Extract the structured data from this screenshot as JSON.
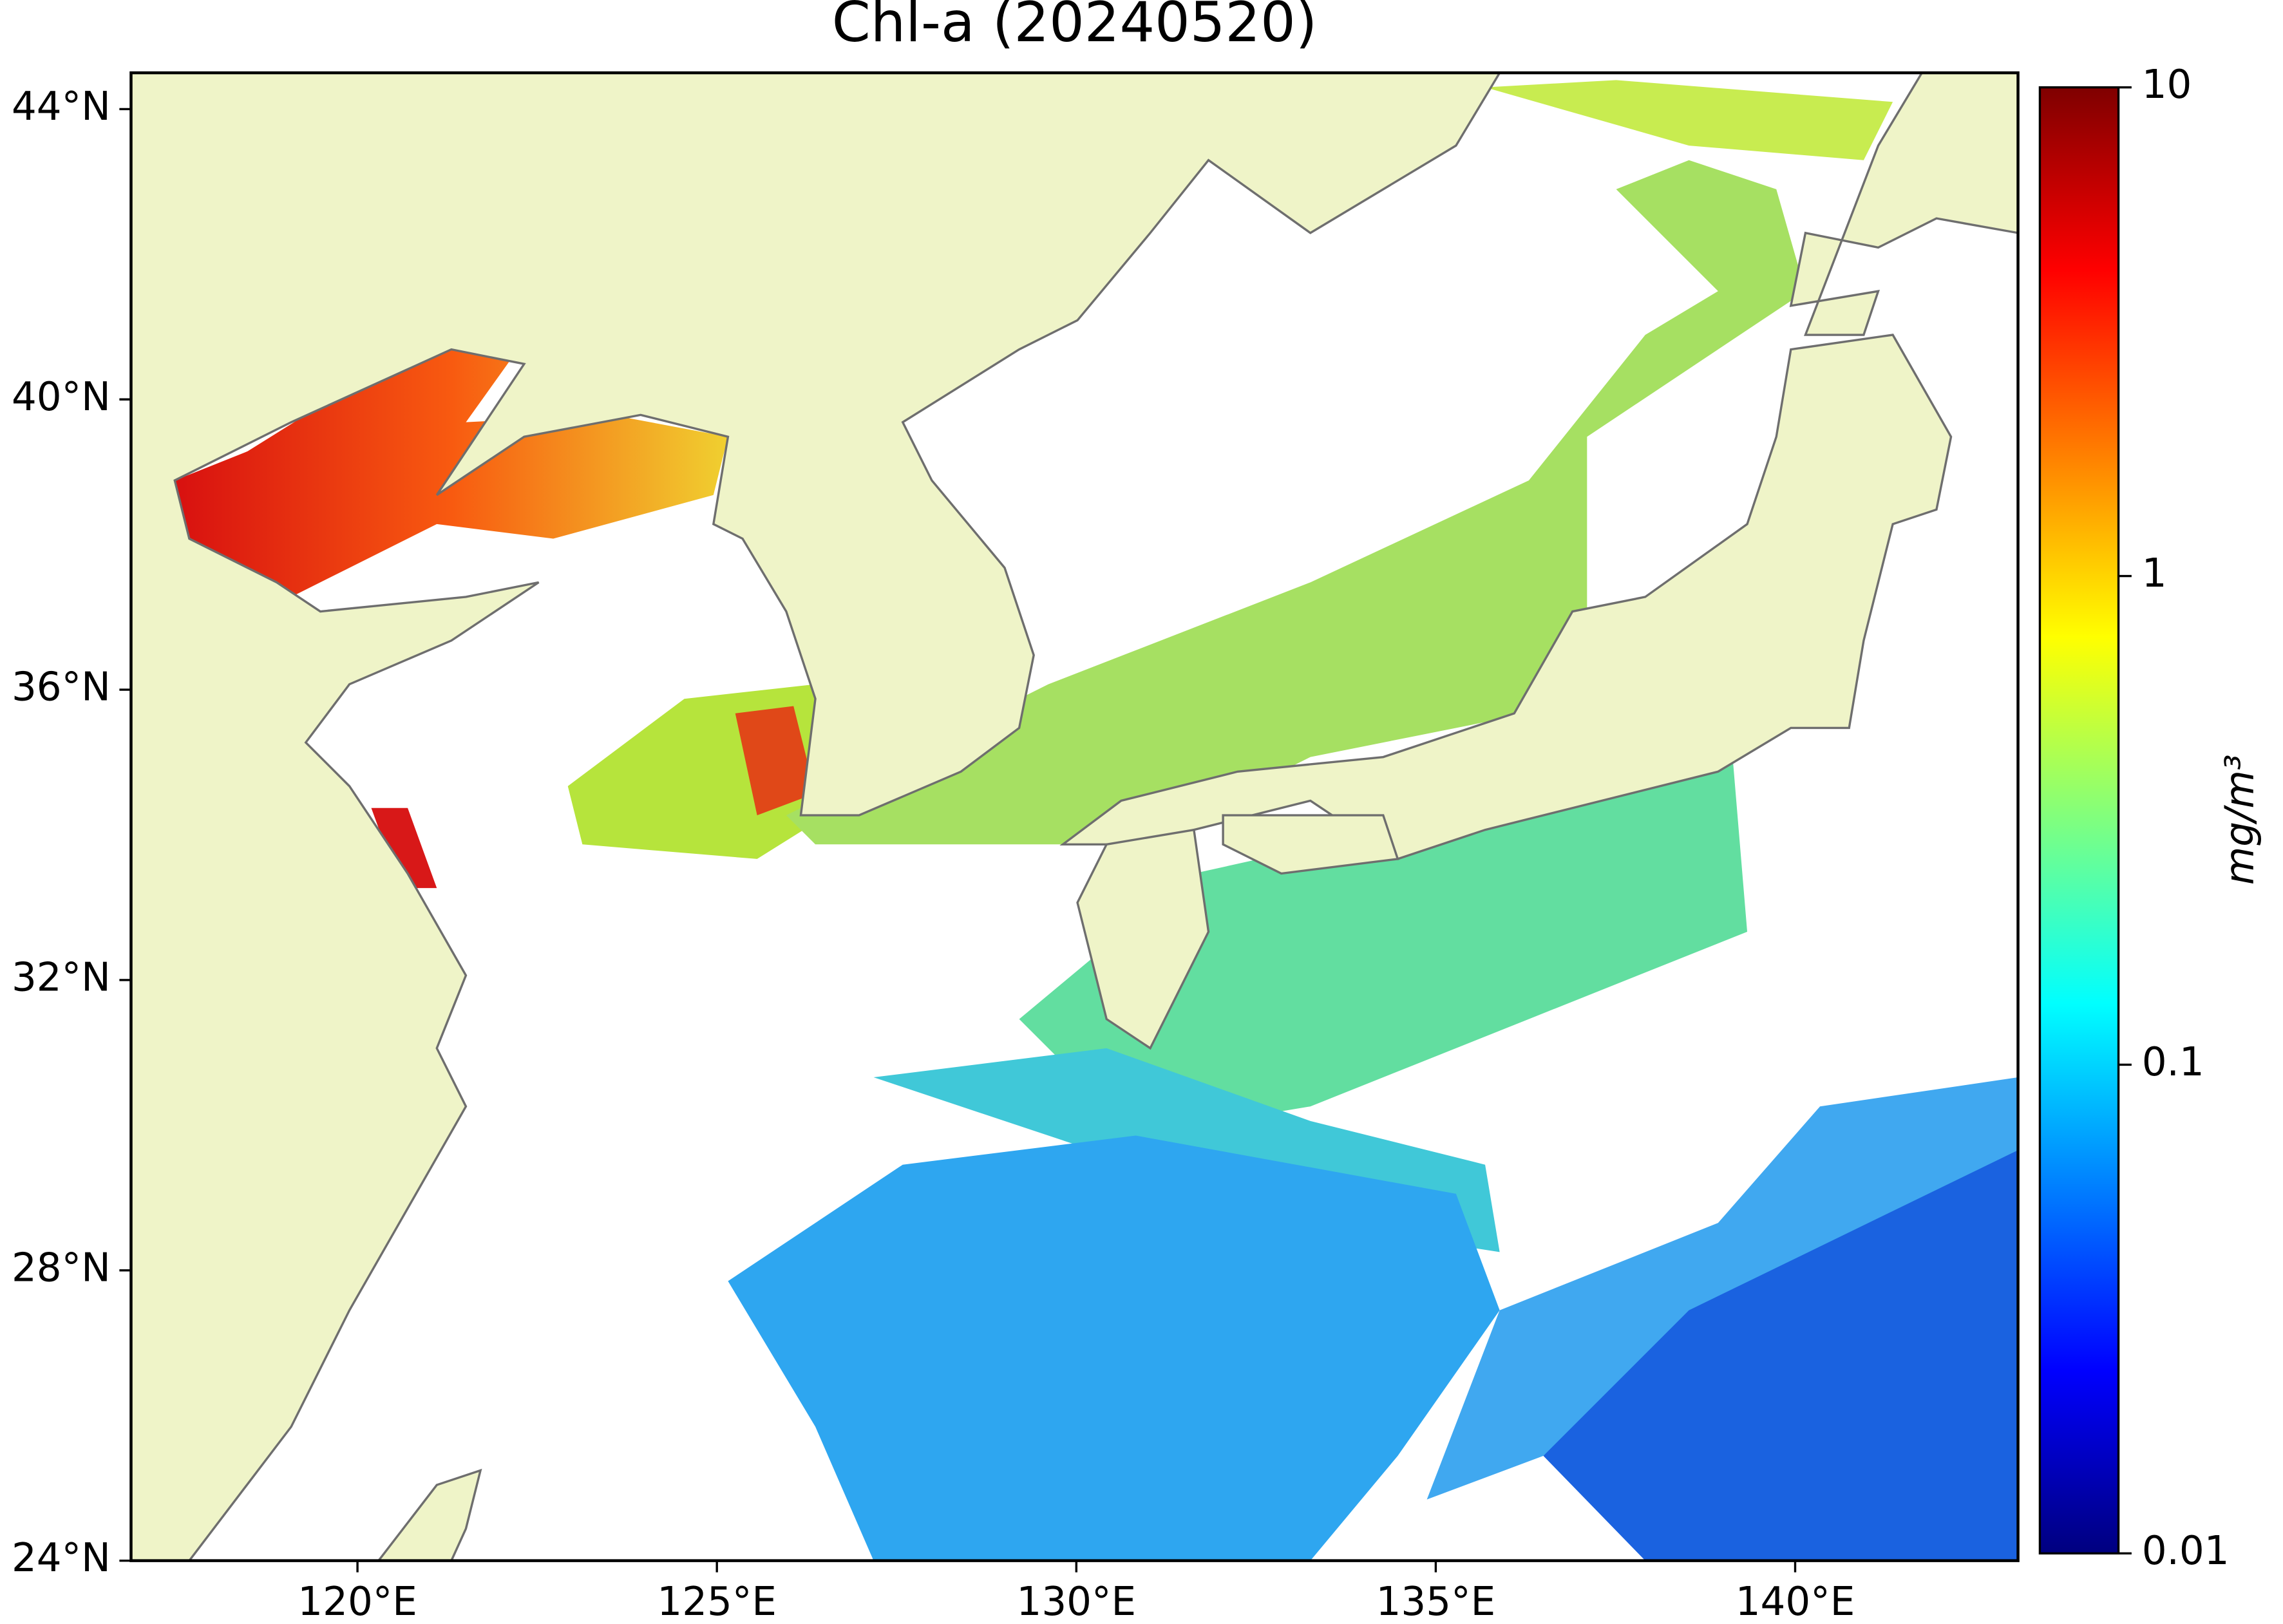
{
  "chart_data": {
    "type": "map",
    "title": "Chl-a (20240520)",
    "xlim": [
      116.85,
      143.1
    ],
    "ylim": [
      24,
      44.5
    ],
    "xticks": [
      {
        "value": 120,
        "label": "120°E"
      },
      {
        "value": 125,
        "label": "125°E"
      },
      {
        "value": 130,
        "label": "130°E"
      },
      {
        "value": 135,
        "label": "135°E"
      },
      {
        "value": 140,
        "label": "140°E"
      }
    ],
    "yticks": [
      {
        "value": 24,
        "label": "24°N"
      },
      {
        "value": 28,
        "label": "28°N"
      },
      {
        "value": 32,
        "label": "32°N"
      },
      {
        "value": 36,
        "label": "36°N"
      },
      {
        "value": 40,
        "label": "40°N"
      },
      {
        "value": 44,
        "label": "44°N"
      }
    ],
    "colorbar": {
      "label": "mg/m³",
      "scale": "log",
      "lim": [
        0.01,
        10
      ],
      "ticks": [
        0.01,
        0.1,
        1,
        10
      ],
      "colormap": "jet"
    }
  }
}
